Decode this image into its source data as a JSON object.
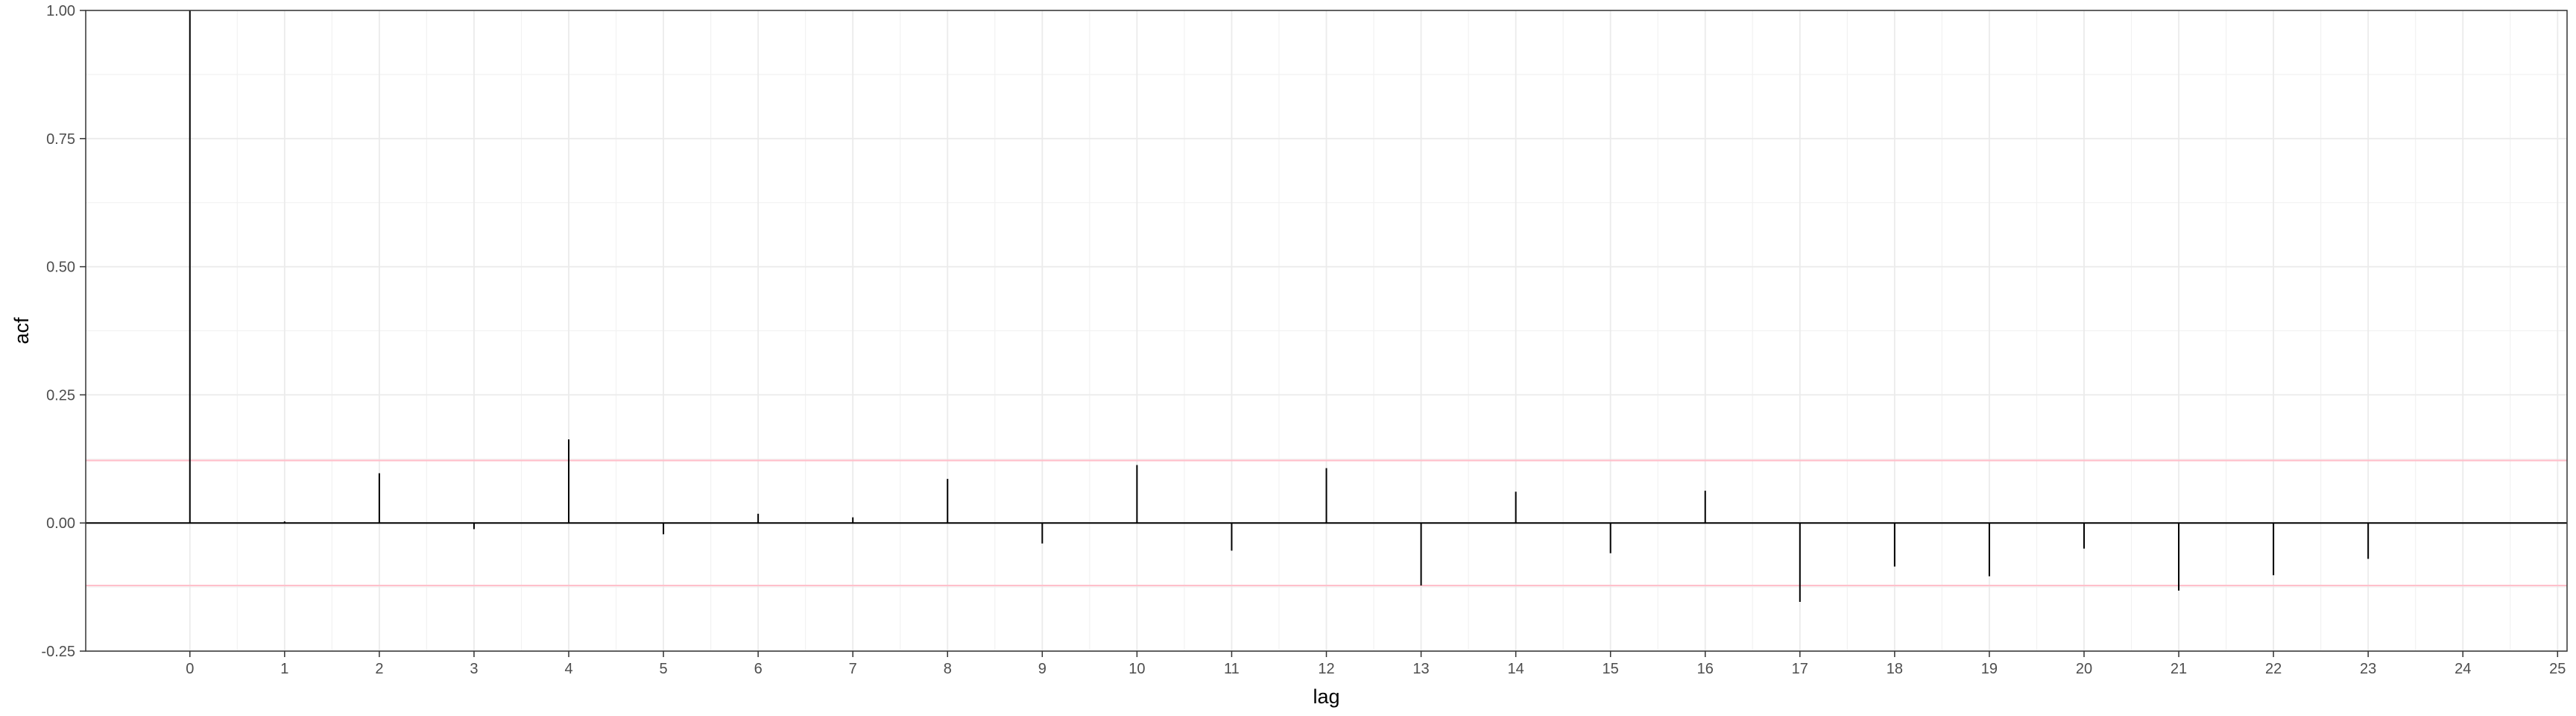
{
  "chart_data": {
    "type": "bar",
    "subtype": "acf-lollipop",
    "xlabel": "lag",
    "ylabel": "acf",
    "xlim": [
      -1.1,
      25.1
    ],
    "ylim": [
      -0.25,
      1.0
    ],
    "x_ticks": [
      0,
      1,
      2,
      3,
      4,
      5,
      6,
      7,
      8,
      9,
      10,
      11,
      12,
      13,
      14,
      15,
      16,
      17,
      18,
      19,
      20,
      21,
      22,
      23,
      24,
      25
    ],
    "y_ticks": [
      -0.25,
      0.0,
      0.25,
      0.5,
      0.75,
      1.0
    ],
    "y_tick_labels": [
      "-0.25",
      "0.00",
      "0.25",
      "0.50",
      "0.75",
      "1.00"
    ],
    "lags": [
      0,
      1,
      2,
      3,
      4,
      5,
      6,
      7,
      8,
      9,
      10,
      11,
      12,
      13,
      14,
      15,
      16,
      17,
      18,
      19,
      20,
      21,
      22,
      23
    ],
    "values": [
      1.0,
      0.003,
      0.097,
      -0.012,
      0.163,
      -0.022,
      0.018,
      0.011,
      0.086,
      -0.04,
      0.113,
      -0.054,
      0.107,
      -0.122,
      0.061,
      -0.059,
      0.063,
      -0.154,
      -0.085,
      -0.104,
      -0.05,
      -0.132,
      -0.102,
      -0.07
    ],
    "confidence_bounds": [
      0.122,
      -0.122
    ],
    "confidence_color": "#ffc0cb",
    "zero_line": 0.0,
    "grid": true,
    "legend": "none",
    "theme": "bw"
  }
}
